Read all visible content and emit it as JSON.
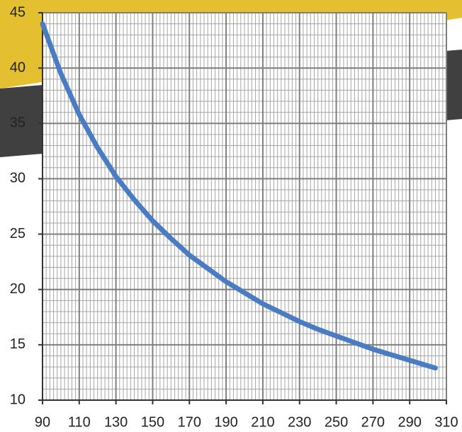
{
  "chart_data": {
    "type": "line",
    "x": [
      90,
      100,
      110,
      120,
      130,
      140,
      150,
      160,
      170,
      180,
      190,
      200,
      210,
      220,
      230,
      240,
      250,
      260,
      270,
      280,
      290,
      300,
      304
    ],
    "series": [
      {
        "color": "#4a7cc4",
        "values": [
          44,
          39.5,
          35.8,
          32.8,
          30.2,
          28.1,
          26.2,
          24.6,
          23.1,
          21.9,
          20.7,
          19.7,
          18.7,
          17.9,
          17.1,
          16.4,
          15.8,
          15.2,
          14.6,
          14.1,
          13.6,
          13.1,
          12.9
        ]
      }
    ],
    "xlim": [
      90,
      310
    ],
    "xticks": [
      90,
      110,
      130,
      150,
      170,
      190,
      210,
      230,
      250,
      270,
      290,
      310
    ],
    "ylim": [
      10,
      45
    ],
    "yticks": [
      10,
      15,
      20,
      25,
      30,
      35,
      40,
      45
    ],
    "grid": true
  }
}
